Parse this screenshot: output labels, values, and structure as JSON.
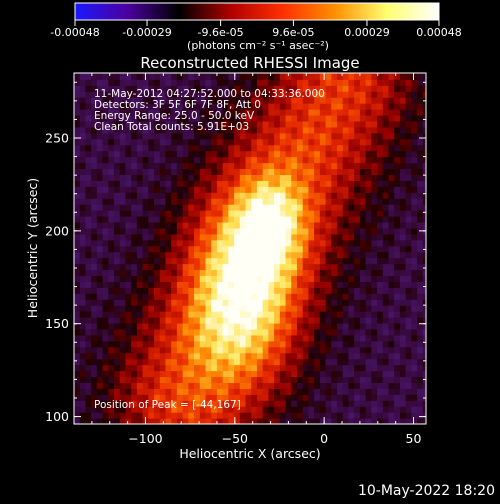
{
  "colorbar": {
    "ticks": [
      "-0.00048",
      "-0.00029",
      "-9.6e-05",
      "9.6e-05",
      "0.00029",
      "0.00048"
    ],
    "tick_values": [
      -0.00048,
      -0.00029,
      -9.6e-05,
      9.6e-05,
      0.00029,
      0.00048
    ],
    "range": [
      -0.00048,
      0.00048
    ],
    "colors": [
      "#1a1aff",
      "#4b00a0",
      "#000000",
      "#b00000",
      "#ff3000",
      "#ff9000",
      "#ffff70",
      "#ffffff"
    ],
    "units_label": "(photons cm⁻² s⁻¹ asec⁻²)"
  },
  "chart_data": {
    "type": "heatmap",
    "title": "Reconstructed RHESSI Image",
    "xlabel": "Heliocentric X (arcsec)",
    "ylabel": "Heliocentric Y (arcsec)",
    "xlim": [
      -140,
      57
    ],
    "ylim": [
      96,
      285
    ],
    "xticks": [
      -100,
      -50,
      0,
      50
    ],
    "yticks": [
      100,
      150,
      200,
      250
    ],
    "xtick_labels": [
      "−100",
      "−50",
      "0",
      "50"
    ],
    "ytick_labels": [
      "100",
      "150",
      "200",
      "250"
    ],
    "annotations": [
      "11-May-2012 04:27:52.000 to 04:33:36.000",
      "Detectors: 3F 5F 6F 7F 8F, Att 0",
      "Energy Range: 25.0 - 50.0 keV",
      "Clean     Total counts: 5.91E+03"
    ],
    "peak_label": "Position of Peak = [-44,167]",
    "peak": [
      -44,
      167
    ],
    "source_axis": {
      "from": [
        -80,
        110
      ],
      "to": [
        10,
        280
      ]
    },
    "background_color": "#5a2a9a"
  },
  "footer_date": "10-May-2022 18:20"
}
